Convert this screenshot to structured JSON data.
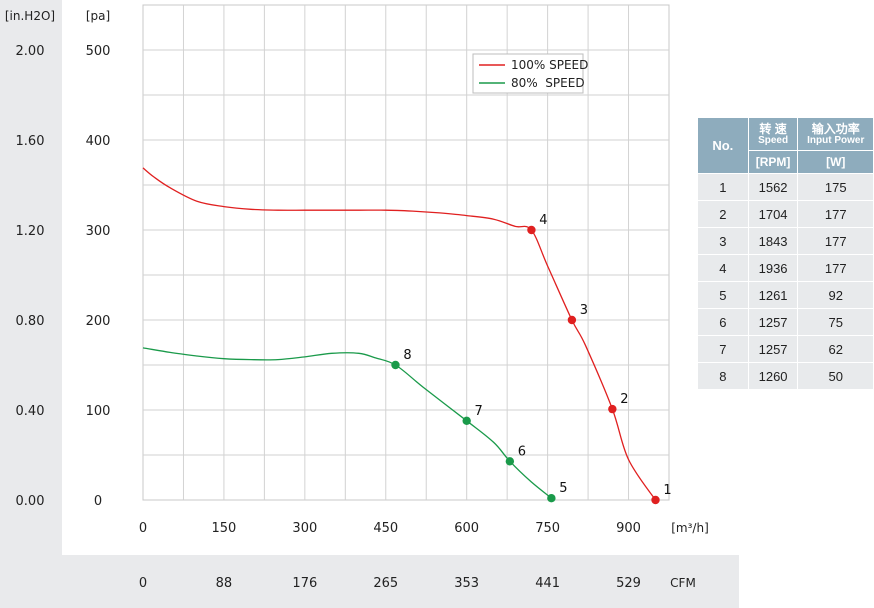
{
  "chart_data": {
    "type": "line",
    "y_left_unit": "[in.H2O]",
    "y_right_unit": "[pa]",
    "x_unit": "[m³/h]",
    "x2_unit": "CFM",
    "x_ticks": [
      "0",
      "150",
      "300",
      "450",
      "600",
      "750",
      "900"
    ],
    "x2_ticks": [
      "0",
      "88",
      "176",
      "265",
      "353",
      "441",
      "529"
    ],
    "y_ticks_pa": [
      "0",
      "100",
      "200",
      "300",
      "400",
      "500"
    ],
    "y_ticks_inh2o": [
      "0.00",
      "0.40",
      "0.80",
      "1.20",
      "1.60",
      "2.00"
    ],
    "xlim": [
      0,
      975
    ],
    "ylim": [
      0,
      550
    ],
    "grid": true,
    "legend_position": "top-right",
    "series": [
      {
        "name": "100% SPEED",
        "color": "#e02020",
        "x": [
          0,
          20,
          50,
          100,
          150,
          200,
          250,
          300,
          350,
          400,
          450,
          500,
          550,
          600,
          650,
          690,
          720,
          750,
          795,
          820,
          870,
          900,
          950
        ],
        "y": [
          369,
          359,
          347,
          332,
          326,
          323,
          322,
          322,
          322,
          322,
          322,
          321,
          319,
          316,
          312,
          304,
          300,
          260,
          200,
          172,
          101,
          45,
          0
        ],
        "points": [
          {
            "label": "4",
            "x": 720,
            "y": 300
          },
          {
            "label": "3",
            "x": 795,
            "y": 200
          },
          {
            "label": "2",
            "x": 870,
            "y": 101
          },
          {
            "label": "1",
            "x": 950,
            "y": 0
          }
        ]
      },
      {
        "name": "80%  SPEED",
        "color": "#1a9a4a",
        "x": [
          0,
          50,
          100,
          150,
          200,
          250,
          300,
          350,
          400,
          430,
          468,
          520,
          600,
          650,
          680,
          720,
          757
        ],
        "y": [
          169,
          164,
          160,
          157,
          156,
          156,
          159,
          163,
          163,
          158,
          150,
          125,
          88,
          64,
          43,
          20,
          2
        ],
        "points": [
          {
            "label": "8",
            "x": 468,
            "y": 150
          },
          {
            "label": "7",
            "x": 600,
            "y": 88
          },
          {
            "label": "6",
            "x": 680,
            "y": 43
          },
          {
            "label": "5",
            "x": 757,
            "y": 2
          }
        ]
      }
    ]
  },
  "table": {
    "header": {
      "no": "No.",
      "speed_cn": "转 速",
      "speed_en": "Speed",
      "power_cn": "输入功率",
      "power_en": "Input Power",
      "rpm_unit": "[RPM]",
      "w_unit": "[W]"
    },
    "rows": [
      {
        "no": "1",
        "rpm": "1562",
        "w": "175"
      },
      {
        "no": "2",
        "rpm": "1704",
        "w": "177"
      },
      {
        "no": "3",
        "rpm": "1843",
        "w": "177"
      },
      {
        "no": "4",
        "rpm": "1936",
        "w": "177"
      },
      {
        "no": "5",
        "rpm": "1261",
        "w": "92"
      },
      {
        "no": "6",
        "rpm": "1257",
        "w": "75"
      },
      {
        "no": "7",
        "rpm": "1257",
        "w": "62"
      },
      {
        "no": "8",
        "rpm": "1260",
        "w": "50"
      }
    ]
  }
}
